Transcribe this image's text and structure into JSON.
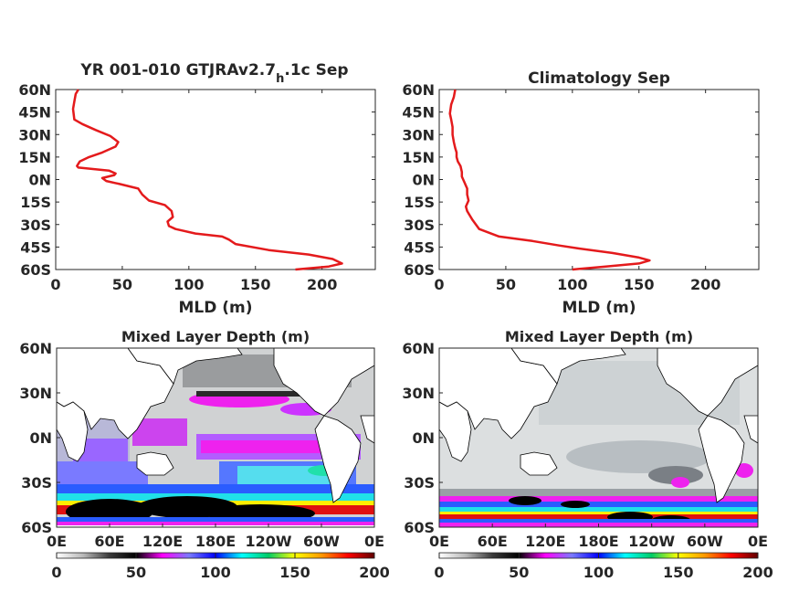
{
  "chart_data": [
    {
      "type": "line",
      "title_main": "YR 001-010 GTJRAv2.7",
      "title_sub": "h",
      "title_tail": ".1c Sep",
      "xlabel": "MLD (m)",
      "ylabel": "",
      "xlim": [
        0,
        240
      ],
      "ylim": [
        -60,
        60
      ],
      "xticks": [
        "0",
        "50",
        "100",
        "150",
        "200"
      ],
      "yticks": [
        "60N",
        "45N",
        "30N",
        "15N",
        "0N",
        "15S",
        "30S",
        "45S",
        "60S"
      ],
      "grid": false,
      "series": [
        {
          "color": "#e41a1c",
          "x": [
            17,
            15,
            14,
            13,
            14,
            20,
            30,
            41,
            47,
            45,
            35,
            25,
            18,
            16,
            17,
            28,
            40,
            45,
            44,
            35,
            38,
            48,
            62,
            65,
            70,
            82,
            87,
            88,
            84,
            85,
            90,
            105,
            125,
            130,
            135,
            160,
            190,
            208,
            215,
            205,
            180
          ],
          "y": [
            60,
            57,
            52,
            47,
            40,
            37,
            33,
            29,
            25,
            22,
            18,
            15,
            12,
            9,
            8,
            7,
            6,
            4,
            3,
            1,
            -1,
            -3,
            -6,
            -10,
            -14,
            -17,
            -21,
            -25,
            -28,
            -31,
            -33,
            -36,
            -38,
            -40,
            -43,
            -47,
            -50,
            -53,
            -56,
            -58,
            -60
          ]
        }
      ]
    },
    {
      "type": "line",
      "title": "Climatology Sep",
      "xlabel": "MLD (m)",
      "ylabel": "",
      "xlim": [
        0,
        240
      ],
      "ylim": [
        -60,
        60
      ],
      "xticks": [
        "0",
        "50",
        "100",
        "150",
        "200"
      ],
      "yticks": [
        "60N",
        "45N",
        "30N",
        "15N",
        "0N",
        "15S",
        "30S",
        "45S",
        "60S"
      ],
      "grid": false,
      "series": [
        {
          "color": "#e41a1c",
          "x": [
            12,
            11,
            9,
            8,
            9,
            10,
            10,
            11,
            12,
            13,
            13,
            14,
            16,
            17,
            17,
            19,
            21,
            21,
            22,
            20,
            21,
            23,
            25,
            30,
            45,
            70,
            90,
            105,
            130,
            150,
            158,
            150,
            125,
            100
          ],
          "y": [
            60,
            55,
            50,
            44,
            40,
            35,
            30,
            25,
            21,
            18,
            15,
            12,
            9,
            5,
            2,
            -2,
            -6,
            -10,
            -14,
            -18,
            -21,
            -24,
            -27,
            -33,
            -38,
            -41,
            -44,
            -46,
            -49,
            -52,
            -54,
            -56,
            -58,
            -60
          ]
        }
      ]
    },
    {
      "type": "heatmap",
      "title": "Mixed Layer Depth (m)",
      "xticks": [
        "0E",
        "60E",
        "120E",
        "180E",
        "120W",
        "60W",
        "0E"
      ],
      "yticks": [
        "60N",
        "30N",
        "0N",
        "30S",
        "60S"
      ],
      "colorbar_ticks": [
        "0",
        "50",
        "100",
        "150",
        "200"
      ],
      "colorbar_range": [
        0,
        200
      ]
    },
    {
      "type": "heatmap",
      "title": "Mixed Layer Depth (m)",
      "xticks": [
        "0E",
        "60E",
        "120E",
        "180E",
        "120W",
        "60W",
        "0E"
      ],
      "yticks": [
        "60N",
        "30N",
        "0N",
        "30S",
        "60S"
      ],
      "colorbar_ticks": [
        "0",
        "50",
        "100",
        "150",
        "200"
      ],
      "colorbar_range": [
        0,
        200
      ]
    }
  ],
  "colorbar": {
    "stops": [
      "#ffffff",
      "#b9b9b9",
      "#3a3a3a",
      "#000000",
      "#ff00ff",
      "#7a7aff",
      "#0000ff",
      "#00ffff",
      "#00cc66",
      "#ffff00",
      "#ff9900",
      "#ff0000",
      "#600000"
    ]
  },
  "colors": {
    "line": "#e41a1c",
    "axis": "#262626",
    "land": "#ffffff",
    "ocean_gray": "#d2d4d5",
    "ocean_dark": "#3a3a3a",
    "magenta": "#ee22ee",
    "violet": "#9a66ff",
    "blue": "#2a5cff",
    "cyan": "#20e0e8",
    "black": "#000000",
    "yellow": "#ffee00",
    "red": "#e01010"
  }
}
